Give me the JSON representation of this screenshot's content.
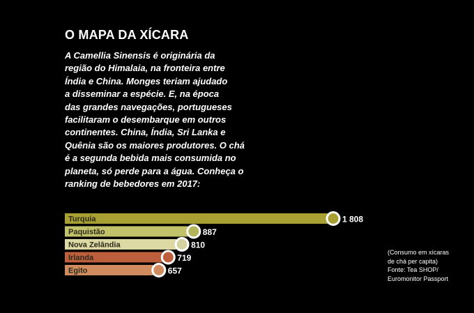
{
  "title": "O MAPA DA XÍCARA",
  "intro_lines": [
    "A Camellia Sinensis é originária da",
    "região do Himalaia, na fronteira entre",
    "Índia e China. Monges teriam ajudado",
    "a disseminar a espécie. E, na época",
    "das grandes navegações, portugueses",
    "facilitaram o desembarque em outros",
    "continentes. China, Índia, Sri Lanka e",
    "Quênia são os maiores produtores. O chá",
    "é a segunda bebida mais consumida no",
    "planeta, só perde para a água. Conheça o",
    "ranking de bebedores em 2017:"
  ],
  "note_lines": [
    "(Consumo em xícaras",
    "de chá per capita)",
    "Fonte: Tea SHOP/",
    "Euromonitor Passport"
  ],
  "chart_data": {
    "type": "bar",
    "orientation": "horizontal",
    "categories": [
      "Turquia",
      "Paquistão",
      "Nova Zelândia",
      "Irlanda",
      "Egito"
    ],
    "values": [
      1808,
      887,
      810,
      719,
      657
    ],
    "value_labels": [
      "1 808",
      "887",
      "810",
      "719",
      "657"
    ],
    "colors": [
      "#a8a033",
      "#c2c26a",
      "#ddd9a4",
      "#bd5e3c",
      "#d08c5e"
    ],
    "marker_colors": [
      "#a8a033",
      "#b4b45a",
      "#d4d2a0",
      "#bd5e3c",
      "#d08c5e"
    ],
    "xlim": [
      0,
      1808
    ],
    "grid": false
  }
}
